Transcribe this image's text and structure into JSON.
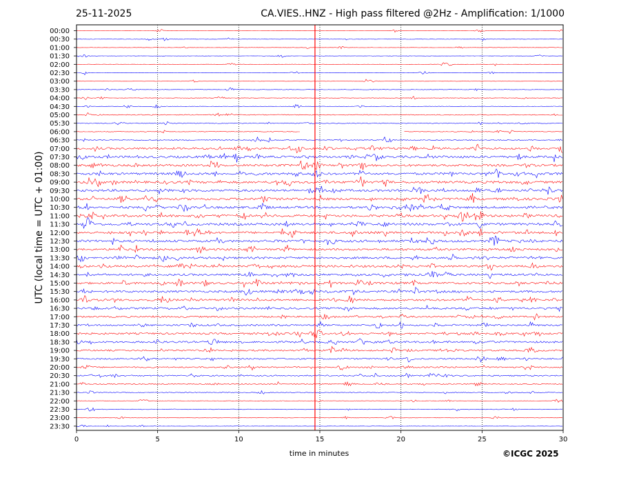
{
  "header": {
    "date": "25-11-2025",
    "title": "CA.VIES..HNZ - High pass filtered @2Hz - Amplification: 1/1000"
  },
  "footer": {
    "copyright": "©ICGC 2025"
  },
  "chart_data": {
    "type": "line",
    "title": "CA.VIES..HNZ - High pass filtered @2Hz - Amplification: 1/1000",
    "xlabel": "time in minutes",
    "ylabel": "UTC (local time = UTC + 01:00)",
    "xlim": [
      0,
      30
    ],
    "x_ticks": [
      "0",
      "5",
      "10",
      "15",
      "20",
      "25",
      "30"
    ],
    "grid": "vertical dotted lines at each x tick",
    "colors": {
      "even_rows": "#ff0000",
      "odd_rows": "#0000ff",
      "event_marker": "#ff0000"
    },
    "rows": [
      "00:00",
      "00:30",
      "01:00",
      "01:30",
      "02:00",
      "02:30",
      "03:00",
      "03:30",
      "04:00",
      "04:30",
      "05:00",
      "05:30",
      "06:00",
      "06:30",
      "07:00",
      "07:30",
      "08:00",
      "08:30",
      "09:00",
      "09:30",
      "10:00",
      "10:30",
      "11:00",
      "11:30",
      "12:00",
      "12:30",
      "13:00",
      "13:30",
      "14:00",
      "14:30",
      "15:00",
      "15:30",
      "16:00",
      "16:30",
      "17:00",
      "17:30",
      "18:00",
      "18:30",
      "19:00",
      "19:30",
      "20:00",
      "20:30",
      "21:00",
      "21:30",
      "22:00",
      "22:30",
      "23:00",
      "23:30"
    ],
    "noise_level": [
      0.15,
      0.2,
      0.15,
      0.12,
      0.15,
      0.15,
      0.12,
      0.2,
      0.2,
      0.2,
      0.35,
      0.35,
      0.25,
      0.45,
      0.9,
      1.0,
      1.0,
      0.95,
      1.0,
      1.0,
      1.0,
      1.0,
      1.0,
      1.0,
      1.0,
      1.0,
      0.9,
      0.9,
      0.9,
      0.9,
      0.9,
      0.9,
      0.9,
      0.8,
      0.7,
      0.75,
      0.8,
      0.8,
      0.7,
      0.6,
      0.6,
      0.55,
      0.45,
      0.3,
      0.2,
      0.25,
      0.15,
      0.12
    ],
    "data_gap": {
      "row": "06:00",
      "x_range": [
        13.8,
        20.2
      ]
    },
    "event_marker_x": 14.7
  }
}
